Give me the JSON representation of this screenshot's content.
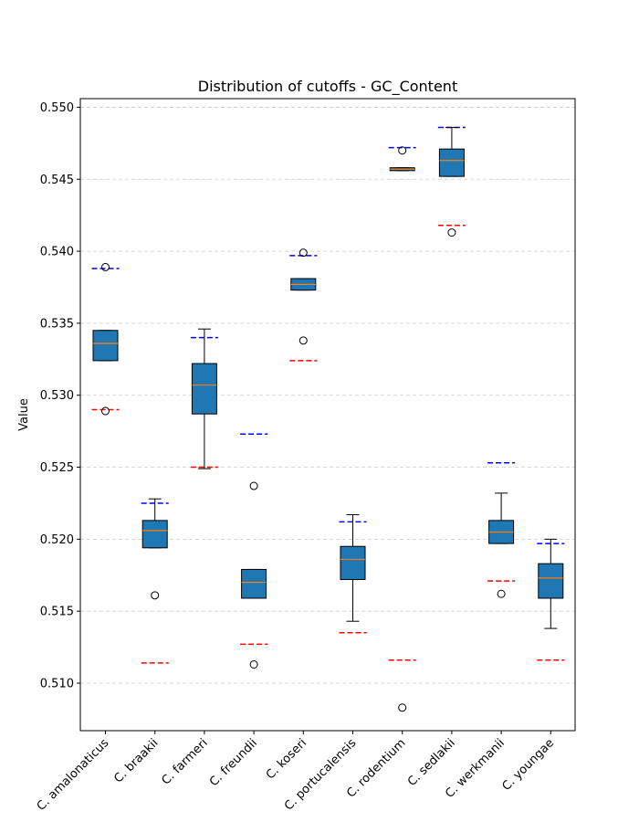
{
  "chart_data": {
    "type": "boxplot",
    "title": "Distribution of cutoffs - GC_Content",
    "xlabel": "",
    "ylabel": "Value",
    "ylim": [
      0.5067,
      0.5506
    ],
    "yticks": [
      "0.510",
      "0.515",
      "0.520",
      "0.525",
      "0.530",
      "0.535",
      "0.540",
      "0.545",
      "0.550"
    ],
    "grid": "horizontal dashed",
    "colors": {
      "box_fill": "#1f77b4",
      "median": "#ff7f0e",
      "upper_cutoff": "#0000ff",
      "lower_cutoff": "#ff0000",
      "grid": "#cccccc"
    },
    "categories": [
      "C. amalonaticus",
      "C. braakii",
      "C. farmeri",
      "C. freundii",
      "C. koseri",
      "C. portucalensis",
      "C. rodentium",
      "C. sedlakii",
      "C. werkmanii",
      "C. youngae"
    ],
    "boxes": [
      {
        "q1": 0.5324,
        "median": 0.5336,
        "q3": 0.5345,
        "whisker_low": 0.5324,
        "whisker_high": 0.5345,
        "outliers": [
          0.5389,
          0.5289
        ],
        "upper_cutoff": 0.5388,
        "lower_cutoff": 0.529
      },
      {
        "q1": 0.5194,
        "median": 0.5206,
        "q3": 0.5213,
        "whisker_low": 0.5194,
        "whisker_high": 0.5228,
        "outliers": [
          0.5161
        ],
        "upper_cutoff": 0.5225,
        "lower_cutoff": 0.5114
      },
      {
        "q1": 0.5287,
        "median": 0.5307,
        "q3": 0.5322,
        "whisker_low": 0.5249,
        "whisker_high": 0.5346,
        "outliers": [],
        "upper_cutoff": 0.534,
        "lower_cutoff": 0.525
      },
      {
        "q1": 0.5159,
        "median": 0.517,
        "q3": 0.5179,
        "whisker_low": 0.5159,
        "whisker_high": 0.5179,
        "outliers": [
          0.5237,
          0.5113
        ],
        "upper_cutoff": 0.5273,
        "lower_cutoff": 0.5127
      },
      {
        "q1": 0.5373,
        "median": 0.5377,
        "q3": 0.5381,
        "whisker_low": 0.5373,
        "whisker_high": 0.5381,
        "outliers": [
          0.5399,
          0.5338
        ],
        "upper_cutoff": 0.5397,
        "lower_cutoff": 0.5324
      },
      {
        "q1": 0.5172,
        "median": 0.5186,
        "q3": 0.5195,
        "whisker_low": 0.5143,
        "whisker_high": 0.5217,
        "outliers": [],
        "upper_cutoff": 0.5212,
        "lower_cutoff": 0.5135
      },
      {
        "q1": 0.5456,
        "median": 0.5457,
        "q3": 0.5458,
        "whisker_low": 0.5456,
        "whisker_high": 0.5458,
        "outliers": [
          0.547,
          0.5083
        ],
        "upper_cutoff": 0.5472,
        "lower_cutoff": 0.5116
      },
      {
        "q1": 0.5452,
        "median": 0.5463,
        "q3": 0.5471,
        "whisker_low": 0.5452,
        "whisker_high": 0.5486,
        "outliers": [
          0.5413
        ],
        "upper_cutoff": 0.5486,
        "lower_cutoff": 0.5418
      },
      {
        "q1": 0.5197,
        "median": 0.5205,
        "q3": 0.5213,
        "whisker_low": 0.5197,
        "whisker_high": 0.5232,
        "outliers": [
          0.5162
        ],
        "upper_cutoff": 0.5253,
        "lower_cutoff": 0.5171
      },
      {
        "q1": 0.5159,
        "median": 0.5173,
        "q3": 0.5183,
        "whisker_low": 0.5138,
        "whisker_high": 0.52,
        "outliers": [],
        "upper_cutoff": 0.5197,
        "lower_cutoff": 0.5116
      }
    ]
  }
}
